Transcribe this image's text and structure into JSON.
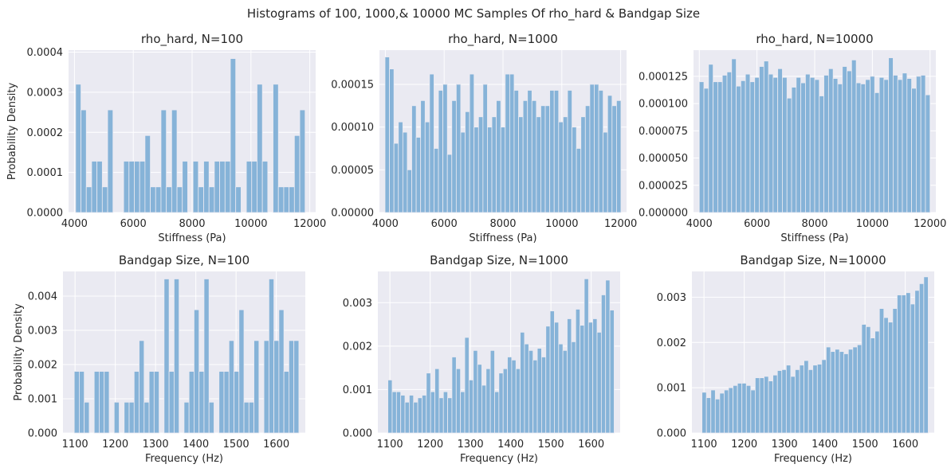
{
  "figure": {
    "suptitle": "Histograms of 100, 1000,& 10000 MC Samples Of rho_hard & Bandgap Size",
    "colors": {
      "background": "#eaeaf2",
      "bar": "#86b3d8",
      "grid": "#ffffff",
      "text": "#262626"
    }
  },
  "chart_data": [
    {
      "type": "bar",
      "title": "rho_hard, N=100",
      "xlabel": "Stiffness (Pa)",
      "ylabel": "Probability Density",
      "xlim": [
        3800,
        12200
      ],
      "ylim": [
        0,
        0.000405
      ],
      "xticks": [
        4000,
        6000,
        8000,
        10000,
        12000
      ],
      "xtick_labels": [
        "4000",
        "6000",
        "8000",
        "10000",
        "12000"
      ],
      "yticks": [
        0,
        0.0001,
        0.0002,
        0.0003,
        0.0004
      ],
      "ytick_labels": [
        "0.0000",
        "0.0001",
        "0.0002",
        "0.0003",
        "0.0004"
      ],
      "bin_range": [
        4040,
        11840
      ],
      "values": [
        0.00032,
        0.000256,
        6.4e-05,
        0.000128,
        0.000128,
        6.4e-05,
        0.000256,
        0,
        0,
        0.000128,
        0.000128,
        0.000128,
        0.000128,
        0.000192,
        6.4e-05,
        6.4e-05,
        0.000256,
        6.4e-05,
        0.000256,
        6.4e-05,
        0.000128,
        0,
        0.000128,
        6.4e-05,
        0.000128,
        6.4e-05,
        0.000128,
        0.000128,
        0.000128,
        0.000384,
        6.4e-05,
        0,
        0.000128,
        0.000128,
        0.00032,
        0.000128,
        0,
        0.00032,
        6.4e-05,
        6.4e-05,
        6.4e-05,
        0.000192,
        0.000256
      ]
    },
    {
      "type": "bar",
      "title": "rho_hard, N=1000",
      "xlabel": "Stiffness (Pa)",
      "ylabel": "",
      "xlim": [
        3800,
        12200
      ],
      "ylim": [
        0,
        0.00019
      ],
      "xticks": [
        4000,
        6000,
        8000,
        10000,
        12000
      ],
      "xtick_labels": [
        "4000",
        "6000",
        "8000",
        "10000",
        "12000"
      ],
      "yticks": [
        0,
        5e-05,
        0.0001,
        0.00015
      ],
      "ytick_labels": [
        "0.00000",
        "0.00005",
        "0.00010",
        "0.00015"
      ],
      "bin_range": [
        3990,
        12010
      ],
      "values": [
        0.000182,
        0.000168,
        8.1e-05,
        0.000106,
        9.4e-05,
        5e-05,
        0.000125,
        8.8e-05,
        0.000131,
        0.000106,
        0.000162,
        7.5e-05,
        0.000143,
        0.00015,
        6.8e-05,
        0.000131,
        0.00015,
        9.4e-05,
        0.000118,
        0.000162,
        0.0001,
        0.000112,
        0.00015,
        0.0001,
        0.000112,
        0.000131,
        0.0001,
        0.000162,
        0.000162,
        0.000143,
        0.000112,
        0.000131,
        0.000143,
        0.000131,
        0.000112,
        0.000125,
        0.000125,
        0.000143,
        0.000143,
        0.000106,
        0.000112,
        0.000143,
        0.0001,
        7.5e-05,
        0.000112,
        0.000125,
        0.00015,
        0.00015,
        0.000143,
        9.4e-05,
        0.000137,
        0.000125,
        0.000131
      ]
    },
    {
      "type": "bar",
      "title": "rho_hard, N=10000",
      "xlabel": "Stiffness (Pa)",
      "ylabel": "",
      "xlim": [
        3800,
        12200
      ],
      "ylim": [
        0,
        0.000149
      ],
      "xticks": [
        4000,
        6000,
        8000,
        10000,
        12000
      ],
      "xtick_labels": [
        "4000",
        "6000",
        "8000",
        "10000",
        "12000"
      ],
      "yticks": [
        0,
        2.5e-05,
        5e-05,
        7.5e-05,
        0.0001,
        0.000125
      ],
      "ytick_labels": [
        "0.000000",
        "0.000025",
        "0.000050",
        "0.000075",
        "0.000100",
        "0.000125"
      ],
      "bin_range": [
        4000,
        12000
      ],
      "values": [
        0.00012,
        0.000114,
        0.000136,
        0.00012,
        0.00012,
        0.000126,
        0.000129,
        0.000141,
        0.000116,
        0.000121,
        0.000127,
        0.00012,
        0.000124,
        0.000134,
        0.000139,
        0.000127,
        0.000124,
        0.000132,
        0.000124,
        0.000105,
        0.000115,
        0.000124,
        0.000119,
        0.000127,
        0.000124,
        0.000122,
        0.000107,
        0.000126,
        0.000132,
        0.000123,
        0.000118,
        0.000134,
        0.00013,
        0.00014,
        0.000119,
        0.000118,
        0.000122,
        0.000125,
        0.00011,
        0.000124,
        0.000122,
        0.000142,
        0.000126,
        0.000122,
        0.000128,
        0.000123,
        0.000114,
        0.000125,
        0.000126,
        0.000108
      ]
    },
    {
      "type": "bar",
      "title": "Bandgap Size, N=100",
      "xlabel": "Frequency (Hz)",
      "ylabel": "Probability Density",
      "xlim": [
        1070,
        1672
      ],
      "ylim": [
        0,
        0.00472
      ],
      "xticks": [
        1100,
        1200,
        1300,
        1400,
        1500,
        1600
      ],
      "xtick_labels": [
        "1100",
        "1200",
        "1300",
        "1400",
        "1500",
        "1600"
      ],
      "yticks": [
        0,
        0.001,
        0.002,
        0.003,
        0.004
      ],
      "ytick_labels": [
        "0.000",
        "0.001",
        "0.002",
        "0.003",
        "0.004"
      ],
      "bin_range": [
        1098,
        1656
      ],
      "values": [
        0.0018,
        0.0018,
        0.0009,
        0,
        0.0018,
        0.0018,
        0.0018,
        0,
        0.0009,
        0,
        0.0009,
        0.0009,
        0.0018,
        0.0027,
        0.0009,
        0.0018,
        0.0018,
        0,
        0.0045,
        0.0018,
        0.0045,
        0,
        0.0009,
        0.0018,
        0.0036,
        0.0018,
        0.0045,
        0.0009,
        0,
        0.0018,
        0.0018,
        0.0027,
        0.0018,
        0.0036,
        0.0009,
        0.0009,
        0.0027,
        0,
        0.0027,
        0.0045,
        0.0027,
        0.0036,
        0.0018,
        0.0027,
        0.0027
      ]
    },
    {
      "type": "bar",
      "title": "Bandgap Size, N=1000",
      "xlabel": "Frequency (Hz)",
      "ylabel": "",
      "xlim": [
        1070,
        1672
      ],
      "ylim": [
        0,
        0.00372
      ],
      "xticks": [
        1100,
        1200,
        1300,
        1400,
        1500,
        1600
      ],
      "xtick_labels": [
        "1100",
        "1200",
        "1300",
        "1400",
        "1500",
        "1600"
      ],
      "yticks": [
        0,
        0.001,
        0.002,
        0.003
      ],
      "ytick_labels": [
        "0.000",
        "0.001",
        "0.002",
        "0.003"
      ],
      "bin_range": [
        1095,
        1657
      ],
      "values": [
        0.00122,
        0.00095,
        0.00095,
        0.00087,
        0.00071,
        0.00087,
        0.00071,
        0.00081,
        0.00087,
        0.00138,
        0.00095,
        0.00148,
        0.00081,
        0.00095,
        0.00081,
        0.00175,
        0.00148,
        0.00095,
        0.0022,
        0.00122,
        0.0019,
        0.00158,
        0.0011,
        0.00148,
        0.0019,
        0.00095,
        0.00138,
        0.00148,
        0.00175,
        0.00168,
        0.00148,
        0.00232,
        0.00205,
        0.0019,
        0.00168,
        0.00195,
        0.00175,
        0.00246,
        0.00281,
        0.00255,
        0.00205,
        0.0019,
        0.00263,
        0.0021,
        0.00285,
        0.00248,
        0.00355,
        0.00255,
        0.00263,
        0.00232,
        0.00318,
        0.00352,
        0.00283
      ]
    },
    {
      "type": "bar",
      "title": "Bandgap Size, N=10000",
      "xlabel": "Frequency (Hz)",
      "ylabel": "",
      "xlim": [
        1070,
        1672
      ],
      "ylim": [
        0,
        0.00357
      ],
      "xticks": [
        1100,
        1200,
        1300,
        1400,
        1500,
        1600
      ],
      "xtick_labels": [
        "1100",
        "1200",
        "1300",
        "1400",
        "1500",
        "1600"
      ],
      "yticks": [
        0,
        0.001,
        0.002,
        0.003
      ],
      "ytick_labels": [
        "0.000",
        "0.001",
        "0.002",
        "0.003"
      ],
      "bin_range": [
        1095,
        1657
      ],
      "values": [
        0.0009,
        0.00078,
        0.00095,
        0.00075,
        0.00088,
        0.00095,
        0.001,
        0.00105,
        0.0011,
        0.0011,
        0.00105,
        0.00095,
        0.00122,
        0.00122,
        0.00125,
        0.00115,
        0.00128,
        0.00138,
        0.0014,
        0.0015,
        0.00125,
        0.0014,
        0.0015,
        0.0016,
        0.0014,
        0.0015,
        0.00152,
        0.00162,
        0.0019,
        0.0018,
        0.00185,
        0.0018,
        0.00175,
        0.00185,
        0.0019,
        0.00195,
        0.0024,
        0.00235,
        0.0021,
        0.00225,
        0.00275,
        0.00255,
        0.00245,
        0.00275,
        0.00305,
        0.00305,
        0.0031,
        0.00285,
        0.00315,
        0.0033,
        0.00345
      ]
    }
  ]
}
